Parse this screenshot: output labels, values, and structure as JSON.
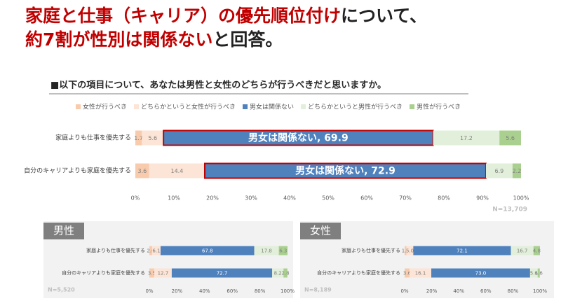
{
  "headline": [
    [
      {
        "text": "家庭と仕事（キャリア）の優先順位付け",
        "color": "#c00000"
      },
      {
        "text": "について、",
        "color": "#222222"
      }
    ],
    [
      {
        "text": "約7割が性別は関係ない",
        "color": "#c00000"
      },
      {
        "text": "と回答。",
        "color": "#222222"
      }
    ]
  ],
  "chart_data": [
    {
      "type": "stacked-bar",
      "title": "■以下の項目について、あなたは男性と女性のどちらが行うべきだと思いますか。",
      "categories": [
        "家庭よりも仕事を優先する",
        "自分のキャリアよりも家庭を優先する"
      ],
      "series": [
        {
          "name": "女性が行うべき",
          "color": "#f8cbad",
          "values": [
            1.7,
            3.6
          ]
        },
        {
          "name": "どちらかというと女性が行うべき",
          "color": "#fce4d6",
          "values": [
            5.6,
            14.4
          ]
        },
        {
          "name": "男女は関係ない",
          "color": "#4f81bd",
          "values": [
            69.9,
            72.9
          ],
          "value_labels": [
            "男女は関係ない, 69.9",
            "男女は関係ない, 72.9"
          ]
        },
        {
          "name": "どちらかというと男性が行うべき",
          "color": "#e2efda",
          "values": [
            17.2,
            6.9
          ]
        },
        {
          "name": "男性が行うべき",
          "color": "#a9d08e",
          "values": [
            5.6,
            2.2
          ]
        }
      ],
      "xlim": [
        0,
        100
      ],
      "xticks": [
        {
          "value": 0,
          "label": "0%"
        },
        {
          "value": 10,
          "label": "10%"
        },
        {
          "value": 20,
          "label": "20%"
        },
        {
          "value": 30,
          "label": "30%"
        },
        {
          "value": 40,
          "label": "40%"
        },
        {
          "value": 50,
          "label": "50%"
        },
        {
          "value": 60,
          "label": "60%"
        },
        {
          "value": 70,
          "label": "70%"
        },
        {
          "value": 80,
          "label": "80%"
        },
        {
          "value": 90,
          "label": "90%"
        },
        {
          "value": 100,
          "label": "100%"
        }
      ],
      "note": "N=13,709",
      "legend": "top"
    },
    {
      "type": "stacked-bar",
      "title": "男性",
      "categories": [
        "家庭よりも仕事を優先する",
        "自分のキャリアよりも家庭を優先する"
      ],
      "series": [
        {
          "color": "#f8cbad",
          "values": [
            2.0,
            3.5
          ],
          "value_labels": [
            "2.0",
            "3.5"
          ]
        },
        {
          "color": "#fce4d6",
          "values": [
            6.1,
            12.7
          ]
        },
        {
          "color": "#4f81bd",
          "values": [
            67.8,
            72.7
          ]
        },
        {
          "color": "#e2efda",
          "values": [
            17.8,
            8.2
          ]
        },
        {
          "color": "#a9d08e",
          "values": [
            6.3,
            2.8
          ]
        }
      ],
      "xlim": [
        0,
        100
      ],
      "xticks": [
        {
          "value": 0,
          "label": "0%"
        },
        {
          "value": 20,
          "label": "20%"
        },
        {
          "value": 40,
          "label": "40%"
        },
        {
          "value": 60,
          "label": "60%"
        },
        {
          "value": 80,
          "label": "80%"
        },
        {
          "value": 100,
          "label": "100%"
        }
      ],
      "note": "N=5,520"
    },
    {
      "type": "stacked-bar",
      "title": "女性",
      "categories": [
        "家庭よりも仕事を優先する",
        "自分のキャリアよりも家庭を優先する"
      ],
      "series": [
        {
          "color": "#f8cbad",
          "values": [
            1.4,
            3.6
          ]
        },
        {
          "color": "#fce4d6",
          "values": [
            5.0,
            16.1
          ],
          "value_labels": [
            "5.0",
            "16.1"
          ]
        },
        {
          "color": "#4f81bd",
          "values": [
            72.1,
            73.0
          ],
          "value_labels": [
            "72.1",
            "73.0"
          ]
        },
        {
          "color": "#e2efda",
          "values": [
            16.7,
            5.6
          ]
        },
        {
          "color": "#a9d08e",
          "values": [
            4.8,
            1.6
          ]
        }
      ],
      "xlim": [
        0,
        100
      ],
      "xticks": [
        {
          "value": 0,
          "label": "0%"
        },
        {
          "value": 20,
          "label": "20%"
        },
        {
          "value": 40,
          "label": "40%"
        },
        {
          "value": 60,
          "label": "60%"
        },
        {
          "value": 80,
          "label": "80%"
        },
        {
          "value": 100,
          "label": "100%"
        }
      ],
      "note": "N=8,189"
    }
  ]
}
